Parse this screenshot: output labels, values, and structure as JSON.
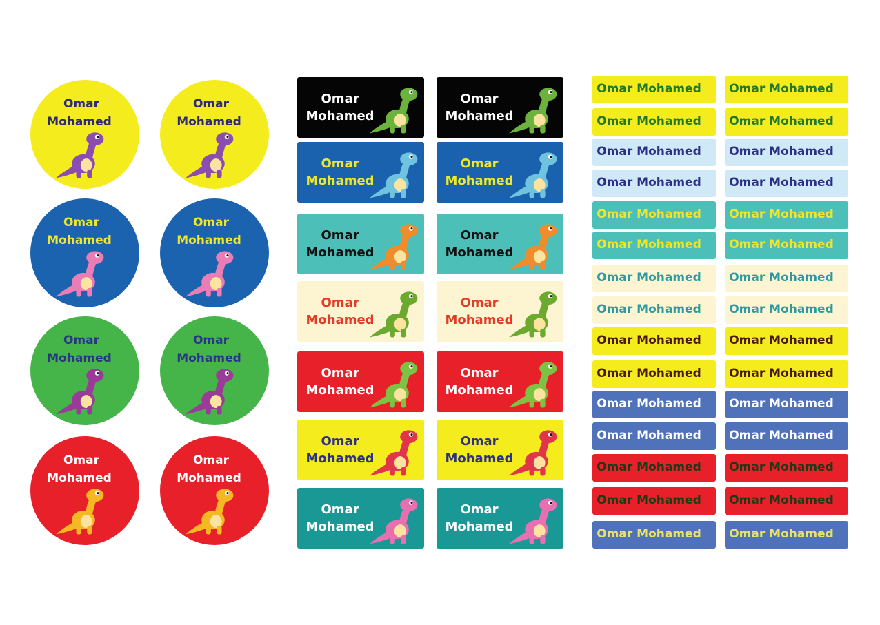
{
  "round_stickers": [
    {
      "first": "Omar",
      "last": "Mohamed"
    },
    {
      "first": "Omar",
      "last": "Mohamed"
    },
    {
      "first": "Omar",
      "last": "Mohamed"
    },
    {
      "first": "Omar",
      "last": "Mohamed"
    },
    {
      "first": "Omar",
      "last": "Mohamed"
    },
    {
      "first": "Omar",
      "last": "Mohamed"
    },
    {
      "first": "Omar",
      "last": "Mohamed"
    },
    {
      "first": "Omar",
      "last": "Mohamed"
    }
  ],
  "name_labels": [
    {
      "first": "Omar",
      "last": "Mohamed"
    },
    {
      "first": "Omar",
      "last": "Mohamed"
    },
    {
      "first": "Omar",
      "last": "Mohamed"
    },
    {
      "first": "Omar",
      "last": "Mohamed"
    },
    {
      "first": "Omar",
      "last": "Mohamed"
    },
    {
      "first": "Omar",
      "last": "Mohamed"
    },
    {
      "first": "Omar",
      "last": "Mohamed"
    },
    {
      "first": "Omar",
      "last": "Mohamed"
    },
    {
      "first": "Omar",
      "last": "Mohamed"
    },
    {
      "first": "Omar",
      "last": "Mohamed"
    },
    {
      "first": "Omar",
      "last": "Mohamed"
    },
    {
      "first": "Omar",
      "last": "Mohamed"
    },
    {
      "first": "Omar",
      "last": "Mohamed"
    },
    {
      "first": "Omar",
      "last": "Mohamed"
    }
  ],
  "strip_labels": [
    "Omar Mohamed",
    "Omar Mohamed",
    "Omar Mohamed",
    "Omar Mohamed",
    "Omar Mohamed",
    "Omar Mohamed",
    "Omar Mohamed",
    "Omar Mohamed",
    "Omar Mohamed",
    "Omar Mohamed",
    "Omar Mohamed",
    "Omar Mohamed",
    "Omar Mohamed",
    "Omar Mohamed",
    "Omar Mohamed",
    "Omar Mohamed",
    "Omar Mohamed",
    "Omar Mohamed",
    "Omar Mohamed",
    "Omar Mohamed",
    "Omar Mohamed",
    "Omar Mohamed",
    "Omar Mohamed",
    "Omar Mohamed",
    "Omar Mohamed",
    "Omar Mohamed",
    "Omar Mohamed",
    "Omar Mohamed",
    "Omar Mohamed",
    "Omar Mohamed"
  ]
}
